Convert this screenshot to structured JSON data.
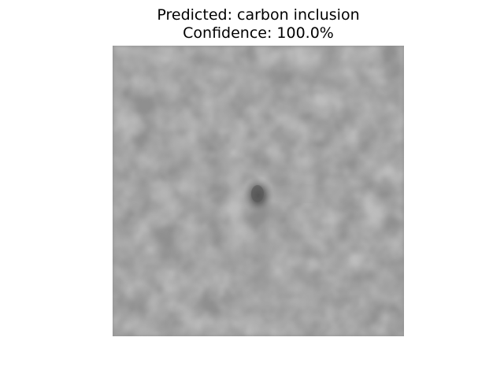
{
  "title": {
    "line1": "Predicted: carbon inclusion",
    "line2": "Confidence: 100.0%"
  },
  "image": {
    "description_name": "grayscale-defect-patch",
    "background_color": "#8f8f8f",
    "defect_color": "#575757"
  }
}
